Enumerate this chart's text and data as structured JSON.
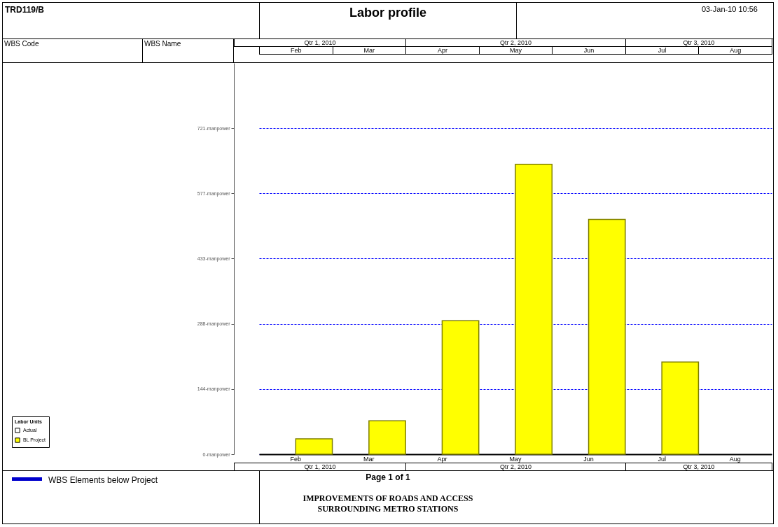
{
  "chart_data": {
    "type": "bar",
    "title": "Labor profile",
    "legend_title": "Labor Units",
    "categories": [
      "Feb",
      "Mar",
      "Apr",
      "May",
      "Jun",
      "Jul",
      "Aug"
    ],
    "series": [
      {
        "name": "Actual",
        "color": "#ffffff",
        "values": [
          null,
          null,
          null,
          null,
          null,
          null,
          null
        ]
      },
      {
        "name": "BL Project",
        "color": "#ffff00",
        "values": [
          34,
          74,
          295,
          641,
          519,
          204,
          null
        ]
      }
    ],
    "ylim": [
      0,
      865
    ],
    "yticks": [
      {
        "value": 0,
        "label": "0-manpower"
      },
      {
        "value": 144,
        "label": "144-manpower"
      },
      {
        "value": 288,
        "label": "288-manpower"
      },
      {
        "value": 433,
        "label": "433-manpower"
      },
      {
        "value": 577,
        "label": "577-manpower"
      },
      {
        "value": 721,
        "label": "721-manpower"
      }
    ],
    "grid": "y",
    "legend": "bottom left",
    "annotations": [
      "TRD119/B",
      "03-Jan-10 10:56",
      "WBS Code",
      "WBS Name",
      "Qtr 1, 2010",
      "Qtr 2, 2010",
      "Qtr 3, 2010",
      "WBS Elements below Project",
      "Page 1 of 1",
      "IMPROVEMENTS OF ROADS AND ACCESS SURROUNDING METRO STATIONS"
    ]
  }
}
